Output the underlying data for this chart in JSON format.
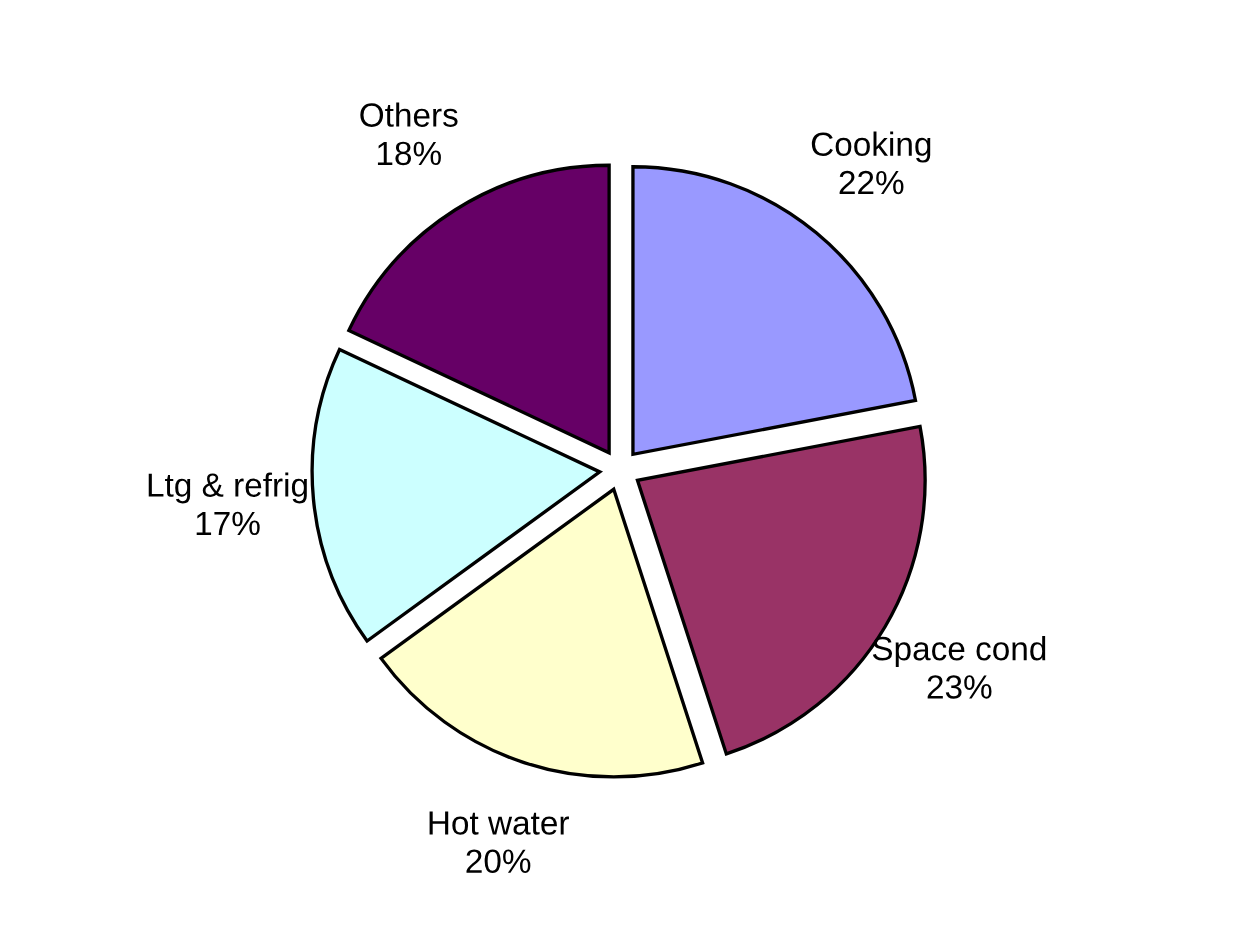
{
  "chart_data": {
    "type": "pie",
    "categories": [
      "Cooking",
      "Space cond",
      "Hot water",
      "Ltg & refrig",
      "Others"
    ],
    "values": [
      22,
      23,
      20,
      17,
      18
    ],
    "colors": [
      "#9999ff",
      "#993366",
      "#ffffcc",
      "#ccffff",
      "#660066"
    ],
    "value_labels": [
      "22%",
      "23%",
      "20%",
      "17%",
      "18%"
    ]
  }
}
